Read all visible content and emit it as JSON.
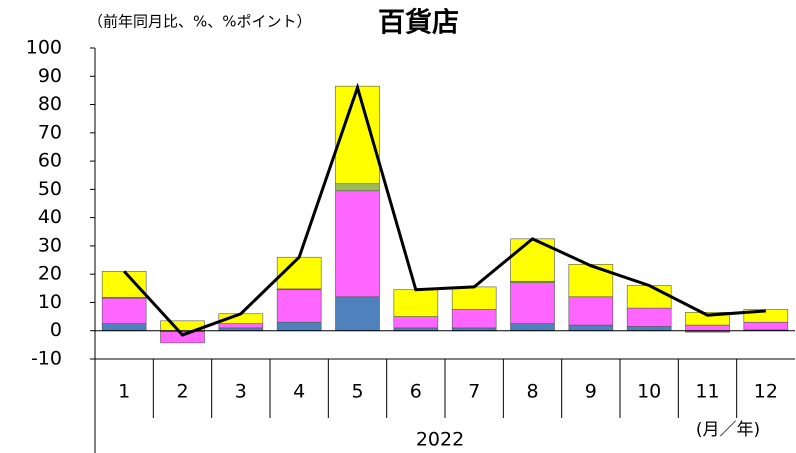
{
  "chart_data": {
    "type": "stacked_bar_line",
    "title": "百貨店",
    "subtitle": "（前年同月比、%、%ポイント）",
    "categories": [
      "1",
      "2",
      "3",
      "4",
      "5",
      "6",
      "7",
      "8",
      "9",
      "10",
      "11",
      "12"
    ],
    "group_label": "2022",
    "x_unit_label": "(月／年)",
    "series": [
      {
        "type": "bar",
        "color": "#4f81bd",
        "values": [
          2.5,
          -0.3,
          1,
          3,
          12,
          1,
          1,
          2.5,
          2,
          1.5,
          -0.5,
          0.3
        ]
      },
      {
        "type": "bar",
        "color": "#ff66ff",
        "values": [
          9,
          -4,
          1.5,
          11.5,
          37.5,
          4,
          6.5,
          14.5,
          10,
          6.5,
          2,
          2.7
        ]
      },
      {
        "type": "bar",
        "color": "#9bbb59",
        "values": [
          0.3,
          0,
          0,
          0.3,
          2.5,
          0,
          0,
          0.5,
          0,
          0,
          0,
          0
        ]
      },
      {
        "type": "bar",
        "color": "#ffff00",
        "values": [
          9.2,
          3.5,
          3.5,
          11.2,
          34.5,
          9.5,
          8,
          15,
          11.5,
          8,
          4.5,
          4.5
        ]
      },
      {
        "type": "line",
        "color": "#000000",
        "values": [
          21,
          -1.5,
          6,
          26,
          86,
          14.5,
          15.5,
          32.5,
          23,
          16,
          5.5,
          7
        ]
      }
    ],
    "ylim": [
      -10,
      100
    ],
    "yticks": [
      -10,
      0,
      10,
      20,
      30,
      40,
      50,
      60,
      70,
      80,
      90,
      100
    ],
    "grid": false
  }
}
